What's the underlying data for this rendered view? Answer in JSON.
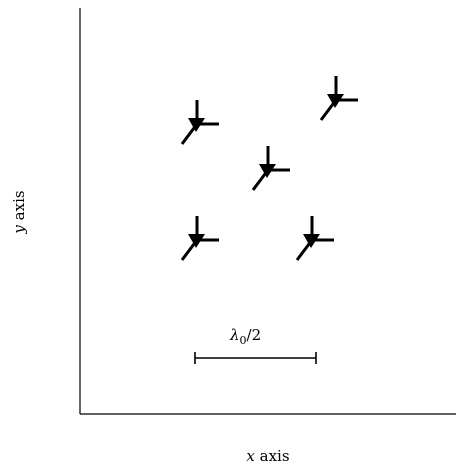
{
  "axes": {
    "x_variable": "x",
    "x_word": " axis",
    "y_variable": "y",
    "y_word": " axis"
  },
  "scale_bar": {
    "lambda_symbol": "λ",
    "subscript": "0",
    "suffix": "/2"
  },
  "elements": [
    {
      "name": "tripod-top-left"
    },
    {
      "name": "tripod-top-right"
    },
    {
      "name": "tripod-center"
    },
    {
      "name": "tripod-bottom-left"
    },
    {
      "name": "tripod-bottom-right"
    }
  ],
  "colors": {
    "ink": "#000000",
    "background": "#ffffff"
  }
}
